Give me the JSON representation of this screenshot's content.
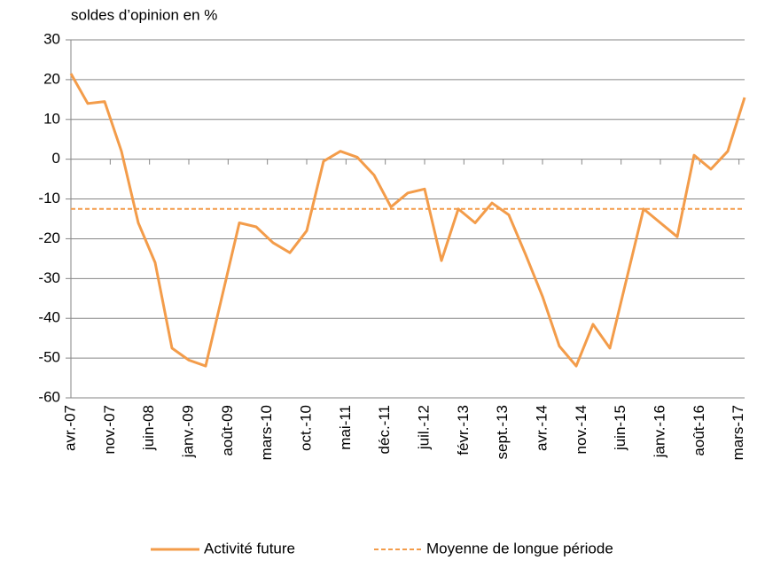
{
  "chart_data": {
    "type": "line",
    "y_label": "soldes d’opinion en %",
    "x": [
      "2007-04",
      "2007-07",
      "2007-10",
      "2008-01",
      "2008-04",
      "2008-07",
      "2008-10",
      "2009-01",
      "2009-04",
      "2009-07",
      "2009-10",
      "2010-01",
      "2010-04",
      "2010-07",
      "2010-10",
      "2011-01",
      "2011-04",
      "2011-07",
      "2011-10",
      "2012-01",
      "2012-04",
      "2012-07",
      "2012-10",
      "2013-01",
      "2013-04",
      "2013-07",
      "2013-10",
      "2014-01",
      "2014-04",
      "2014-07",
      "2014-10",
      "2015-01",
      "2015-04",
      "2015-07",
      "2015-10",
      "2016-01",
      "2016-04",
      "2016-07",
      "2016-10",
      "2017-01",
      "2017-04"
    ],
    "series": [
      {
        "name": "Activité future",
        "color": "#f39c4a",
        "values": [
          21.5,
          14,
          14.5,
          2,
          -16,
          -26,
          -47.5,
          -50.5,
          -52,
          -34,
          -16,
          -17,
          -21,
          -23.5,
          -18,
          -0.5,
          2,
          0.5,
          -4,
          -12,
          -8.5,
          -7.5,
          -25.5,
          -12.5,
          -16,
          -11,
          -14,
          -24,
          -34.5,
          -47,
          -52,
          -41.5,
          -47.5,
          -30,
          -12.5,
          -16,
          -19.5,
          1,
          -2.5,
          2,
          15.5
        ]
      }
    ],
    "reference": {
      "name": "Moyenne de longue période",
      "value": -12.5,
      "color": "#f39c4a",
      "dashed": true
    },
    "xlim": [
      "2007-04",
      "2017-04"
    ],
    "xticks": [
      {
        "value": "2007-04",
        "label": "avr.-07"
      },
      {
        "value": "2007-11",
        "label": "nov.-07"
      },
      {
        "value": "2008-06",
        "label": "juin-08"
      },
      {
        "value": "2009-01",
        "label": "janv.-09"
      },
      {
        "value": "2009-08",
        "label": "août-09"
      },
      {
        "value": "2010-03",
        "label": "mars-10"
      },
      {
        "value": "2010-10",
        "label": "oct.-10"
      },
      {
        "value": "2011-05",
        "label": "mai-11"
      },
      {
        "value": "2011-12",
        "label": "déc.-11"
      },
      {
        "value": "2012-07",
        "label": "juil.-12"
      },
      {
        "value": "2013-02",
        "label": "févr.-13"
      },
      {
        "value": "2013-09",
        "label": "sept.-13"
      },
      {
        "value": "2014-04",
        "label": "avr.-14"
      },
      {
        "value": "2014-11",
        "label": "nov.-14"
      },
      {
        "value": "2015-06",
        "label": "juin-15"
      },
      {
        "value": "2016-01",
        "label": "janv.-16"
      },
      {
        "value": "2016-08",
        "label": "août-16"
      },
      {
        "value": "2017-03",
        "label": "mars-17"
      }
    ],
    "ylim": [
      -60,
      30
    ],
    "yticks": [
      -60,
      -50,
      -40,
      -30,
      -20,
      -10,
      0,
      10,
      20,
      30
    ],
    "grid": true,
    "legend": "bottom"
  }
}
